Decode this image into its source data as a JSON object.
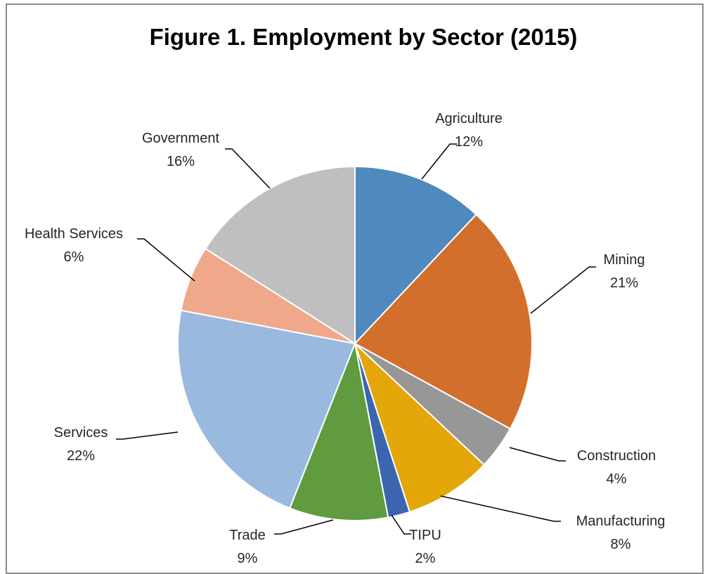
{
  "chart_data": {
    "type": "pie",
    "title": "Figure 1. Employment by Sector (2015)",
    "start_angle_deg": 0,
    "direction": "clockwise",
    "slices": [
      {
        "label": "Agriculture",
        "value": 12,
        "display": "12%",
        "color": "#4f89bd"
      },
      {
        "label": "Mining",
        "value": 21,
        "display": "21%",
        "color": "#d26f2c"
      },
      {
        "label": "Construction",
        "value": 4,
        "display": "4%",
        "color": "#979797"
      },
      {
        "label": "Manufacturing",
        "value": 8,
        "display": "8%",
        "color": "#e3a70a"
      },
      {
        "label": "TIPU",
        "value": 2,
        "display": "2%",
        "color": "#3c65b0"
      },
      {
        "label": "Trade",
        "value": 9,
        "display": "9%",
        "color": "#609c3f"
      },
      {
        "label": "Services",
        "value": 22,
        "display": "22%",
        "color": "#99b9df"
      },
      {
        "label": "Health Services",
        "value": 6,
        "display": "6%",
        "color": "#f0a88a"
      },
      {
        "label": "Government",
        "value": 16,
        "display": "16%",
        "color": "#bfbfbf"
      }
    ],
    "legend": "none",
    "data_labels": "outside with leader lines"
  }
}
